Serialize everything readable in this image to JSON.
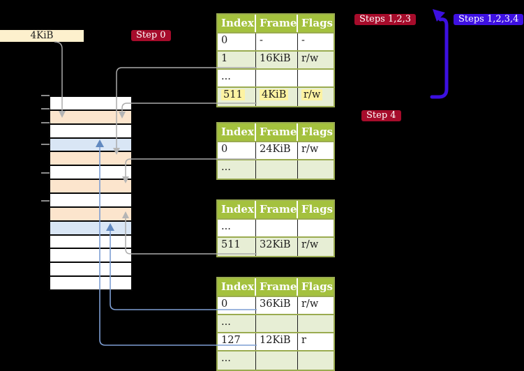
{
  "frame_label": {
    "text": "4KiB"
  },
  "badges": {
    "step0": "Step 0",
    "steps123": "Steps 1,2,3",
    "steps1234": "Steps 1,2,3,4",
    "step4": "Step 4"
  },
  "tables": [
    {
      "name": "page-table-level-4",
      "headers": [
        "Index",
        "Frame",
        "Flags"
      ],
      "rows": [
        {
          "index": "0",
          "frame": "-",
          "flags": "-",
          "shaded": false,
          "highlight": false
        },
        {
          "index": "1",
          "frame": "16KiB",
          "flags": "r/w",
          "shaded": true,
          "highlight": false
        },
        {
          "index": "...",
          "frame": "",
          "flags": "",
          "shaded": false,
          "highlight": false
        },
        {
          "index": "511",
          "frame": "4KiB",
          "flags": "r/w",
          "shaded": true,
          "highlight": true
        }
      ]
    },
    {
      "name": "page-table-level-3",
      "headers": [
        "Index",
        "Frame",
        "Flags"
      ],
      "rows": [
        {
          "index": "0",
          "frame": "24KiB",
          "flags": "r/w",
          "shaded": false,
          "highlight": false
        },
        {
          "index": "...",
          "frame": "",
          "flags": "",
          "shaded": true,
          "highlight": false
        }
      ]
    },
    {
      "name": "page-table-level-2",
      "headers": [
        "Index",
        "Frame",
        "Flags"
      ],
      "rows": [
        {
          "index": "...",
          "frame": "",
          "flags": "",
          "shaded": false,
          "highlight": false
        },
        {
          "index": "511",
          "frame": "32KiB",
          "flags": "r/w",
          "shaded": true,
          "highlight": false
        }
      ]
    },
    {
      "name": "page-table-level-1",
      "headers": [
        "Index",
        "Frame",
        "Flags"
      ],
      "rows": [
        {
          "index": "0",
          "frame": "36KiB",
          "flags": "r/w",
          "shaded": false,
          "highlight": false
        },
        {
          "index": "...",
          "frame": "",
          "flags": "",
          "shaded": true,
          "highlight": false
        },
        {
          "index": "127",
          "frame": "12KiB",
          "flags": "r",
          "shaded": false,
          "highlight": false
        },
        {
          "index": "...",
          "frame": "",
          "flags": "",
          "shaded": true,
          "highlight": false
        }
      ]
    }
  ],
  "memory_column": {
    "rows": [
      {
        "type": "free"
      },
      {
        "type": "table"
      },
      {
        "type": "free"
      },
      {
        "type": "page"
      },
      {
        "type": "table"
      },
      {
        "type": "free"
      },
      {
        "type": "table"
      },
      {
        "type": "free"
      },
      {
        "type": "table"
      },
      {
        "type": "page"
      },
      {
        "type": "free"
      },
      {
        "type": "free"
      },
      {
        "type": "free"
      },
      {
        "type": "free"
      }
    ]
  },
  "connections": [
    {
      "from": "frame-label-4KiB",
      "to": "memory-frame-4KiB",
      "color": "gray"
    },
    {
      "from": "level4-entry-1",
      "to": "memory-frame-16KiB",
      "color": "gray"
    },
    {
      "from": "level4-entry-511",
      "to": "memory-frame-4KiB",
      "color": "gray"
    },
    {
      "from": "level3-entry-0",
      "to": "memory-frame-24KiB",
      "color": "gray"
    },
    {
      "from": "level2-entry-511",
      "to": "memory-frame-32KiB",
      "color": "gray"
    },
    {
      "from": "level1-entry-0",
      "to": "memory-frame-36KiB",
      "color": "blue"
    },
    {
      "from": "level1-entry-127",
      "to": "memory-frame-12KiB",
      "color": "blue"
    },
    {
      "from": "level4-entry-511",
      "to": "page-table-level-4",
      "color": "indigo"
    }
  ],
  "colors": {
    "background": "#000000",
    "frame_label_bg": "#fdf0cd",
    "frame_label_text": "#1f1f1f",
    "badge_red": "#a60c2b",
    "badge_blue": "#3e11e2",
    "badge_text": "#ffffff",
    "table_header_bg": "#a4c13e",
    "table_header_text": "#fefefe",
    "table_row_bg": "#ffffff",
    "table_row_alt_bg": "#e7eed5",
    "table_border": "#9aab50",
    "cell_divider": "#1c1c1c",
    "cell_text": "#1c1c1c",
    "highlight_yellow": "#fdf3a2",
    "mem_free": "#ffffff",
    "mem_table": "#fce5cd",
    "mem_page": "#d9e6f5",
    "mem_border": "#060606",
    "connector_gray": "#ababab",
    "connector_blue": "#7d9ed3",
    "arrowhead_gray": "#b5b5b5",
    "arrowhead_blue": "#6189c0",
    "loop_arrow": "#3c10e0",
    "tick": "#8c8c8c"
  }
}
